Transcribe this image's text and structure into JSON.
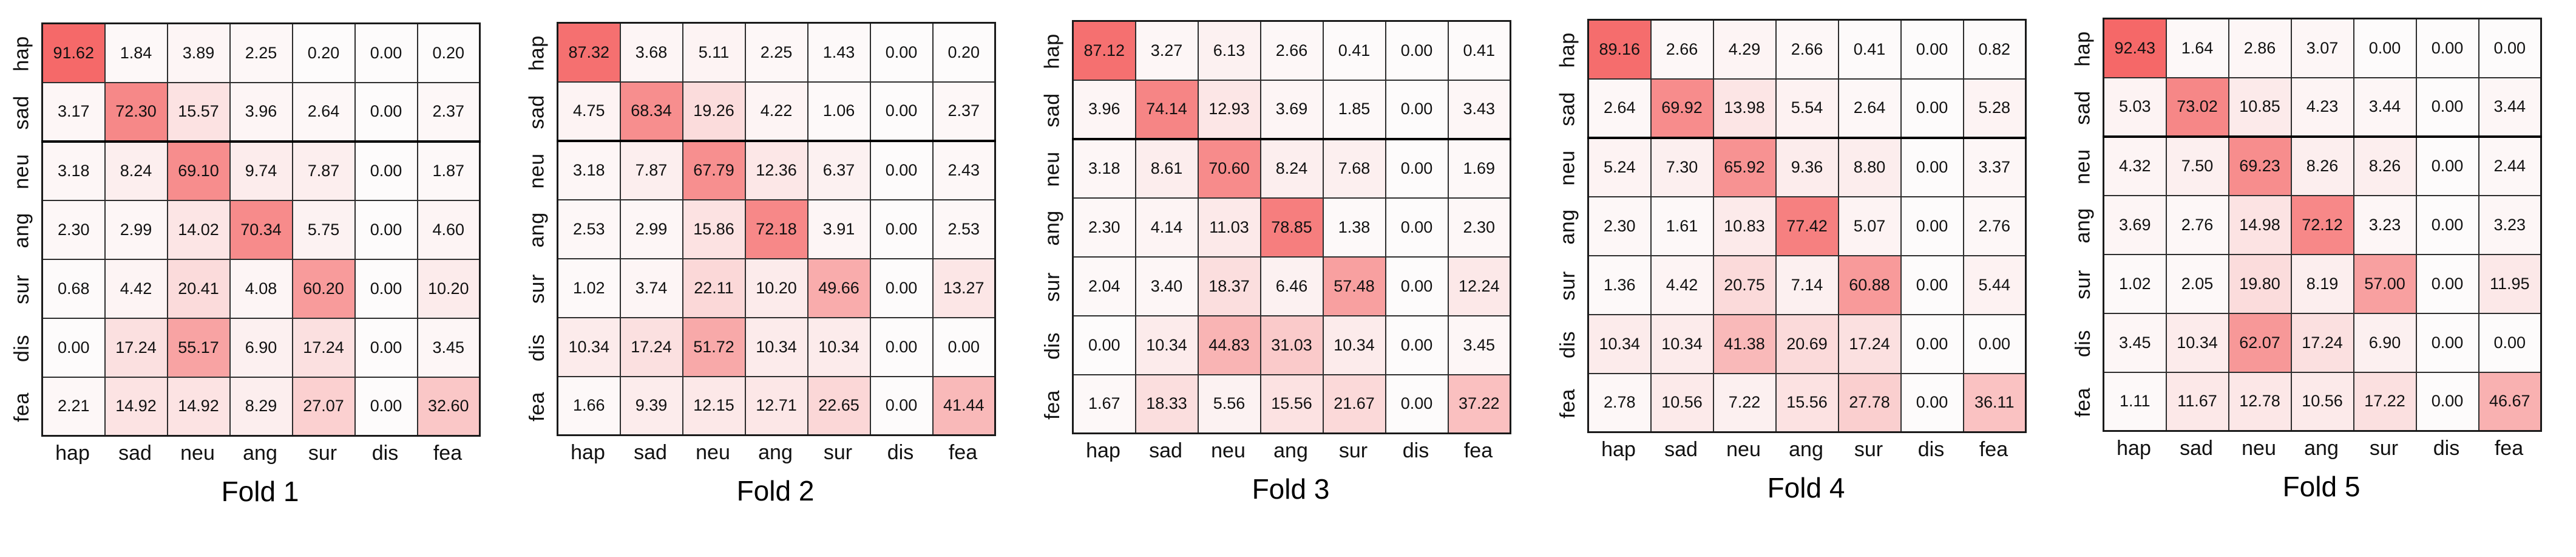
{
  "colors": {
    "cell_scale_low": "#fdfbfb",
    "cell_scale_high": "#f45c5c",
    "grid_line": "#2d2d2d",
    "thick_divider": "#000000",
    "text": "#111111"
  },
  "emotion_labels": [
    "hap",
    "sad",
    "neu",
    "ang",
    "sur",
    "dis",
    "fea"
  ],
  "chart_data": [
    {
      "type": "heatmap",
      "title": "Fold 1",
      "x_categories": [
        "hap",
        "sad",
        "neu",
        "ang",
        "sur",
        "dis",
        "fea"
      ],
      "y_categories": [
        "hap",
        "sad",
        "neu",
        "ang",
        "sur",
        "dis",
        "fea"
      ],
      "value_range": [
        0,
        100
      ],
      "values": [
        [
          91.62,
          1.84,
          3.89,
          2.25,
          0.2,
          0.0,
          0.2
        ],
        [
          3.17,
          72.3,
          15.57,
          3.96,
          2.64,
          0.0,
          2.37
        ],
        [
          3.18,
          8.24,
          69.1,
          9.74,
          7.87,
          0.0,
          1.87
        ],
        [
          2.3,
          2.99,
          14.02,
          70.34,
          5.75,
          0.0,
          4.6
        ],
        [
          0.68,
          4.42,
          20.41,
          4.08,
          60.2,
          0.0,
          10.2
        ],
        [
          0.0,
          17.24,
          55.17,
          6.9,
          17.24,
          0.0,
          3.45
        ],
        [
          2.21,
          14.92,
          14.92,
          8.29,
          27.07,
          0.0,
          32.6
        ]
      ]
    },
    {
      "type": "heatmap",
      "title": "Fold 2",
      "x_categories": [
        "hap",
        "sad",
        "neu",
        "ang",
        "sur",
        "dis",
        "fea"
      ],
      "y_categories": [
        "hap",
        "sad",
        "neu",
        "ang",
        "sur",
        "dis",
        "fea"
      ],
      "value_range": [
        0,
        100
      ],
      "values": [
        [
          87.32,
          3.68,
          5.11,
          2.25,
          1.43,
          0.0,
          0.2
        ],
        [
          4.75,
          68.34,
          19.26,
          4.22,
          1.06,
          0.0,
          2.37
        ],
        [
          3.18,
          7.87,
          67.79,
          12.36,
          6.37,
          0.0,
          2.43
        ],
        [
          2.53,
          2.99,
          15.86,
          72.18,
          3.91,
          0.0,
          2.53
        ],
        [
          1.02,
          3.74,
          22.11,
          10.2,
          49.66,
          0.0,
          13.27
        ],
        [
          10.34,
          17.24,
          51.72,
          10.34,
          10.34,
          0.0,
          0.0
        ],
        [
          1.66,
          9.39,
          12.15,
          12.71,
          22.65,
          0.0,
          41.44
        ]
      ]
    },
    {
      "type": "heatmap",
      "title": "Fold 3",
      "x_categories": [
        "hap",
        "sad",
        "neu",
        "ang",
        "sur",
        "dis",
        "fea"
      ],
      "y_categories": [
        "hap",
        "sad",
        "neu",
        "ang",
        "sur",
        "dis",
        "fea"
      ],
      "value_range": [
        0,
        100
      ],
      "values": [
        [
          87.12,
          3.27,
          6.13,
          2.66,
          0.41,
          0.0,
          0.41
        ],
        [
          3.96,
          74.14,
          12.93,
          3.69,
          1.85,
          0.0,
          3.43
        ],
        [
          3.18,
          8.61,
          70.6,
          8.24,
          7.68,
          0.0,
          1.69
        ],
        [
          2.3,
          4.14,
          11.03,
          78.85,
          1.38,
          0.0,
          2.3
        ],
        [
          2.04,
          3.4,
          18.37,
          6.46,
          57.48,
          0.0,
          12.24
        ],
        [
          0.0,
          10.34,
          44.83,
          31.03,
          10.34,
          0.0,
          3.45
        ],
        [
          1.67,
          18.33,
          5.56,
          15.56,
          21.67,
          0.0,
          37.22
        ]
      ]
    },
    {
      "type": "heatmap",
      "title": "Fold 4",
      "x_categories": [
        "hap",
        "sad",
        "neu",
        "ang",
        "sur",
        "dis",
        "fea"
      ],
      "y_categories": [
        "hap",
        "sad",
        "neu",
        "ang",
        "sur",
        "dis",
        "fea"
      ],
      "value_range": [
        0,
        100
      ],
      "values": [
        [
          89.16,
          2.66,
          4.29,
          2.66,
          0.41,
          0.0,
          0.82
        ],
        [
          2.64,
          69.92,
          13.98,
          5.54,
          2.64,
          0.0,
          5.28
        ],
        [
          5.24,
          7.3,
          65.92,
          9.36,
          8.8,
          0.0,
          3.37
        ],
        [
          2.3,
          1.61,
          10.83,
          77.42,
          5.07,
          0.0,
          2.76
        ],
        [
          1.36,
          4.42,
          20.75,
          7.14,
          60.88,
          0.0,
          5.44
        ],
        [
          10.34,
          10.34,
          41.38,
          20.69,
          17.24,
          0.0,
          0.0
        ],
        [
          2.78,
          10.56,
          7.22,
          15.56,
          27.78,
          0.0,
          36.11
        ]
      ]
    },
    {
      "type": "heatmap",
      "title": "Fold 5",
      "x_categories": [
        "hap",
        "sad",
        "neu",
        "ang",
        "sur",
        "dis",
        "fea"
      ],
      "y_categories": [
        "hap",
        "sad",
        "neu",
        "ang",
        "sur",
        "dis",
        "fea"
      ],
      "value_range": [
        0,
        100
      ],
      "values": [
        [
          92.43,
          1.64,
          2.86,
          3.07,
          0.0,
          0.0,
          0.0
        ],
        [
          5.03,
          73.02,
          10.85,
          4.23,
          3.44,
          0.0,
          3.44
        ],
        [
          4.32,
          7.5,
          69.23,
          8.26,
          8.26,
          0.0,
          2.44
        ],
        [
          3.69,
          2.76,
          14.98,
          72.12,
          3.23,
          0.0,
          3.23
        ],
        [
          1.02,
          2.05,
          19.8,
          8.19,
          57.0,
          0.0,
          11.95
        ],
        [
          3.45,
          10.34,
          62.07,
          17.24,
          6.9,
          0.0,
          0.0
        ],
        [
          1.11,
          11.67,
          12.78,
          10.56,
          17.22,
          0.0,
          46.67
        ]
      ]
    }
  ]
}
